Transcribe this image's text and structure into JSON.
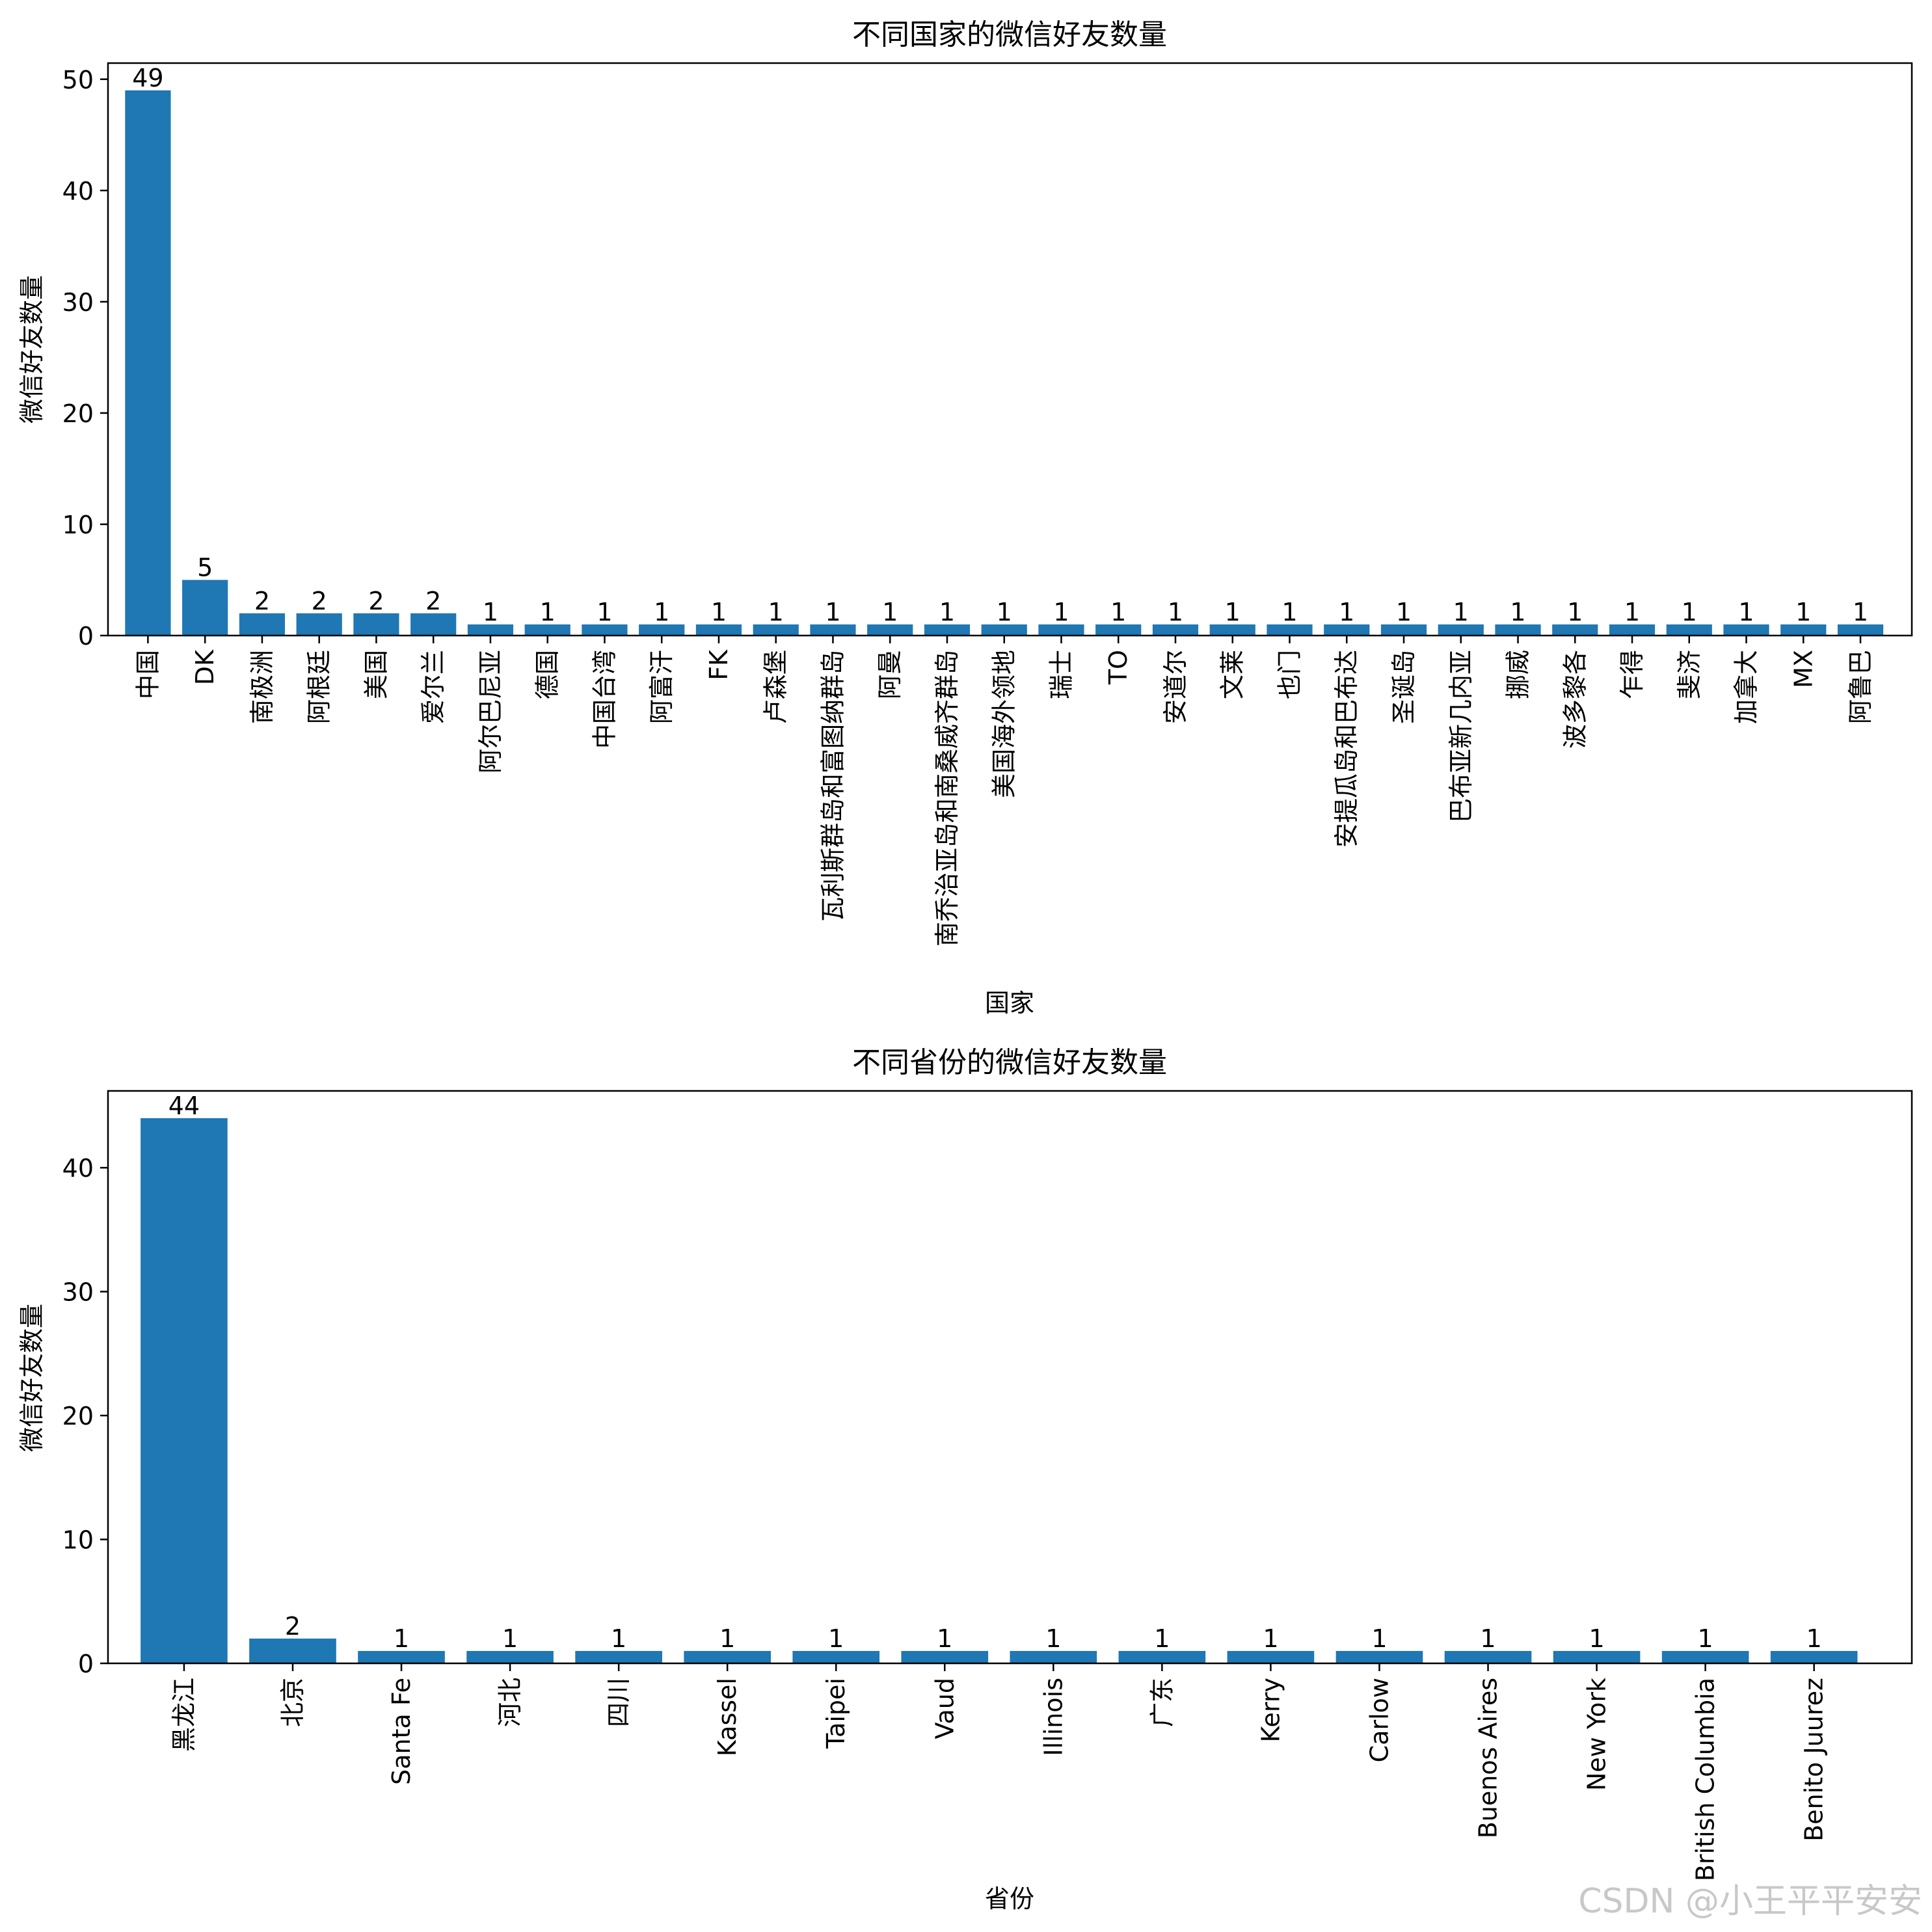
{
  "colors": {
    "bar": "#1f77b4",
    "axis": "#000000",
    "watermark": "#c8c8c8"
  },
  "watermark": "CSDN @小王平平安安",
  "chart_data": [
    {
      "type": "bar",
      "title": "不同国家的微信好友数量",
      "xlabel": "国家",
      "ylabel": "微信好友数量",
      "ylim": [
        0,
        51.45
      ],
      "yticks": [
        0,
        10,
        20,
        30,
        40,
        50
      ],
      "grid": false,
      "categories": [
        "中国",
        "DK",
        "南极洲",
        "阿根廷",
        "美国",
        "爱尔兰",
        "阿尔巴尼亚",
        "德国",
        "中国台湾",
        "阿富汗",
        "FK",
        "卢森堡",
        "瓦利斯群岛和富图纳群岛",
        "阿曼",
        "南乔治亚岛和南桑威齐群岛",
        "美国海外领地",
        "瑞士",
        "TO",
        "安道尔",
        "文莱",
        "也门",
        "安提瓜岛和巴布达",
        "圣诞岛",
        "巴布亚新几内亚",
        "挪威",
        "波多黎各",
        "乍得",
        "斐济",
        "加拿大",
        "MX",
        "阿鲁巴"
      ],
      "values": [
        49,
        5,
        2,
        2,
        2,
        2,
        1,
        1,
        1,
        1,
        1,
        1,
        1,
        1,
        1,
        1,
        1,
        1,
        1,
        1,
        1,
        1,
        1,
        1,
        1,
        1,
        1,
        1,
        1,
        1,
        1
      ]
    },
    {
      "type": "bar",
      "title": "不同省份的微信好友数量",
      "xlabel": "省份",
      "ylabel": "微信好友数量",
      "ylim": [
        0,
        46.2
      ],
      "yticks": [
        0,
        10,
        20,
        30,
        40
      ],
      "grid": false,
      "categories": [
        "黑龙江",
        "北京",
        "Santa Fe",
        "河北",
        "四川",
        "Kassel",
        "Taipei",
        "Vaud",
        "Illinois",
        "广东",
        "Kerry",
        "Carlow",
        "Buenos Aires",
        "New York",
        "British Columbia",
        "Benito Juurez"
      ],
      "values": [
        44,
        2,
        1,
        1,
        1,
        1,
        1,
        1,
        1,
        1,
        1,
        1,
        1,
        1,
        1,
        1
      ]
    }
  ]
}
